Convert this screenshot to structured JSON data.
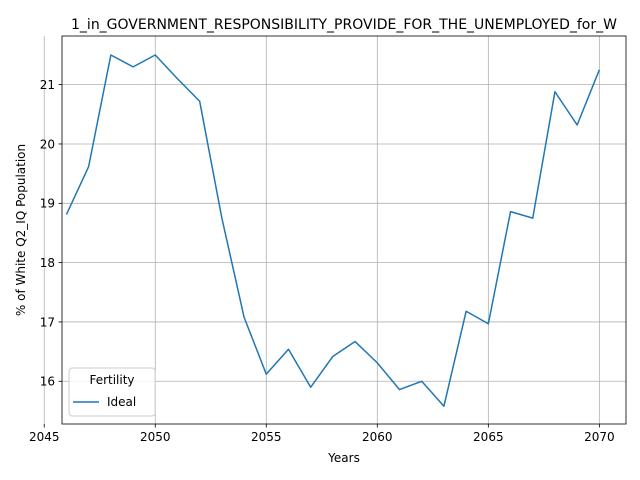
{
  "chart_data": {
    "type": "line",
    "title": "1_in_GOVERNMENT_RESPONSIBILITY_PROVIDE_FOR_THE_UNEMPLOYED_for_W",
    "xlabel": "Years",
    "ylabel": "% of White Q2_IQ Population",
    "xlim": [
      2045.8,
      2071.2
    ],
    "ylim": [
      15.28,
      21.82
    ],
    "xticks": [
      2045,
      2050,
      2055,
      2060,
      2065,
      2070
    ],
    "yticks": [
      16,
      17,
      18,
      19,
      20,
      21
    ],
    "grid": true,
    "legend": {
      "title": "Fertility",
      "placement": "lower-left"
    },
    "series": [
      {
        "name": "Ideal",
        "color": "#1f77b4",
        "x": [
          2046,
          2047,
          2048,
          2049,
          2050,
          2051,
          2052,
          2053,
          2054,
          2055,
          2056,
          2057,
          2058,
          2059,
          2060,
          2061,
          2062,
          2063,
          2064,
          2065,
          2066,
          2067,
          2068,
          2069,
          2070
        ],
        "y": [
          18.81,
          19.62,
          21.5,
          21.3,
          21.5,
          21.1,
          20.72,
          18.75,
          17.08,
          16.12,
          16.54,
          15.9,
          16.42,
          16.67,
          16.31,
          15.86,
          16.0,
          15.58,
          17.18,
          16.97,
          18.86,
          18.75,
          20.88,
          20.32,
          21.25
        ]
      }
    ]
  }
}
